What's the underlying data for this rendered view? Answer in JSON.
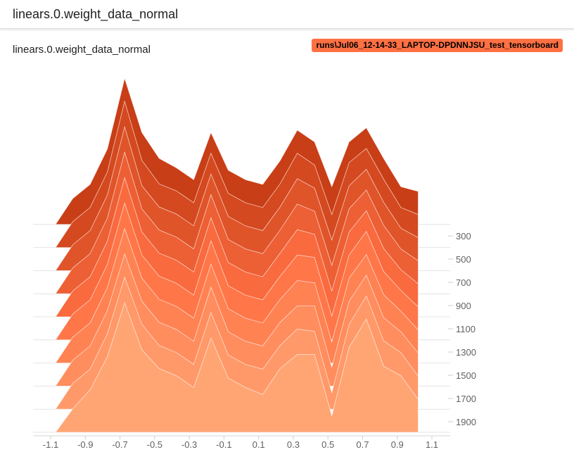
{
  "header": {
    "title": "linears.0.weight_data_normal"
  },
  "card": {
    "title": "linears.0.weight_data_normal",
    "run_label": "runs\\Jul06_12-14-33_LAPTOP-DPDNNJSU_test_tensorboard"
  },
  "colors": {
    "top_series": "#c83e16",
    "mid_series": "#ff7043",
    "bottom_series": "#ffa574",
    "badge": "#ff7043"
  },
  "chart_data": {
    "type": "area",
    "subtype": "histogram-offset",
    "x": [
      -1.1,
      -1.0,
      -0.9,
      -0.8,
      -0.7,
      -0.6,
      -0.5,
      -0.4,
      -0.3,
      -0.2,
      -0.1,
      0.0,
      0.1,
      0.2,
      0.3,
      0.4,
      0.5,
      0.6,
      0.7,
      0.8,
      0.9,
      1.0
    ],
    "x_ticks": [
      "-1.1",
      "-0.9",
      "-0.7",
      "-0.5",
      "-0.3",
      "-0.1",
      "0.1",
      "0.3",
      "0.5",
      "0.7",
      "0.9",
      "1.1"
    ],
    "xlim": [
      -1.1,
      1.1
    ],
    "y_ticks": [
      "300",
      "500",
      "700",
      "900",
      "1100",
      "1300",
      "1500",
      "1700",
      "1900"
    ],
    "steps": [
      100,
      300,
      500,
      700,
      900,
      1100,
      1300,
      1500,
      1700,
      1900
    ],
    "series": [
      {
        "step": 100,
        "values": [
          0,
          11,
          17,
          32,
          62,
          39,
          28,
          24,
          19,
          39,
          23,
          19,
          17,
          27,
          40,
          35,
          16,
          35,
          41,
          28,
          16,
          14
        ]
      },
      {
        "step": 300,
        "values": [
          0,
          11,
          17,
          32,
          62,
          37,
          27,
          24,
          19,
          40,
          23,
          19,
          17,
          27,
          40,
          35,
          14,
          36,
          42,
          29,
          17,
          14
        ]
      },
      {
        "step": 500,
        "values": [
          0,
          11,
          17,
          32,
          61,
          36,
          27,
          24,
          19,
          41,
          23,
          19,
          17,
          27,
          39,
          35,
          13,
          36,
          43,
          29,
          18,
          14
        ]
      },
      {
        "step": 700,
        "values": [
          0,
          11,
          17,
          32,
          60,
          36,
          27,
          24,
          19,
          42,
          23,
          19,
          17,
          27,
          38,
          35,
          12,
          36,
          44,
          29,
          19,
          14
        ]
      },
      {
        "step": 900,
        "values": [
          0,
          11,
          17,
          32,
          59,
          36,
          27,
          24,
          19,
          42,
          23,
          19,
          17,
          27,
          37,
          35,
          11,
          36,
          45,
          29,
          20,
          14
        ]
      },
      {
        "step": 1100,
        "values": [
          0,
          11,
          17,
          32,
          58,
          36,
          27,
          24,
          19,
          42,
          23,
          19,
          17,
          27,
          36,
          35,
          10,
          36,
          46,
          29,
          21,
          14
        ]
      },
      {
        "step": 1300,
        "values": [
          0,
          11,
          17,
          32,
          57,
          36,
          27,
          24,
          19,
          42,
          23,
          19,
          17,
          27,
          35,
          34,
          9,
          36,
          46,
          29,
          22,
          14
        ]
      },
      {
        "step": 1500,
        "values": [
          0,
          11,
          17,
          32,
          56,
          36,
          27,
          24,
          19,
          42,
          23,
          19,
          17,
          27,
          34,
          34,
          8,
          36,
          47,
          29,
          23,
          14
        ]
      },
      {
        "step": 1700,
        "values": [
          0,
          11,
          17,
          32,
          56,
          36,
          27,
          24,
          19,
          41,
          23,
          19,
          17,
          27,
          34,
          33,
          7,
          36,
          48,
          29,
          24,
          14
        ]
      },
      {
        "step": 1900,
        "values": [
          0,
          10,
          18,
          32,
          55,
          35,
          27,
          24,
          19,
          40,
          23,
          19,
          16,
          27,
          33,
          33,
          7,
          36,
          48,
          28,
          24,
          14
        ]
      }
    ]
  }
}
